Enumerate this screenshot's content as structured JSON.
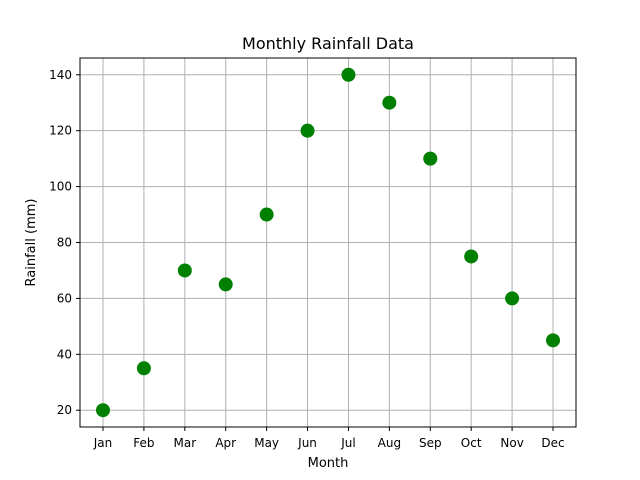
{
  "chart_data": {
    "type": "scatter",
    "title": "Monthly Rainfall Data",
    "xlabel": "Month",
    "ylabel": "Rainfall (mm)",
    "categories": [
      "Jan",
      "Feb",
      "Mar",
      "Apr",
      "May",
      "Jun",
      "Jul",
      "Aug",
      "Sep",
      "Oct",
      "Nov",
      "Dec"
    ],
    "values": [
      20,
      35,
      70,
      65,
      90,
      120,
      140,
      130,
      110,
      75,
      60,
      45
    ],
    "ylim": [
      14,
      146
    ],
    "yticks": [
      20,
      40,
      60,
      80,
      100,
      120,
      140
    ],
    "grid": true,
    "marker_color": "#008000"
  }
}
